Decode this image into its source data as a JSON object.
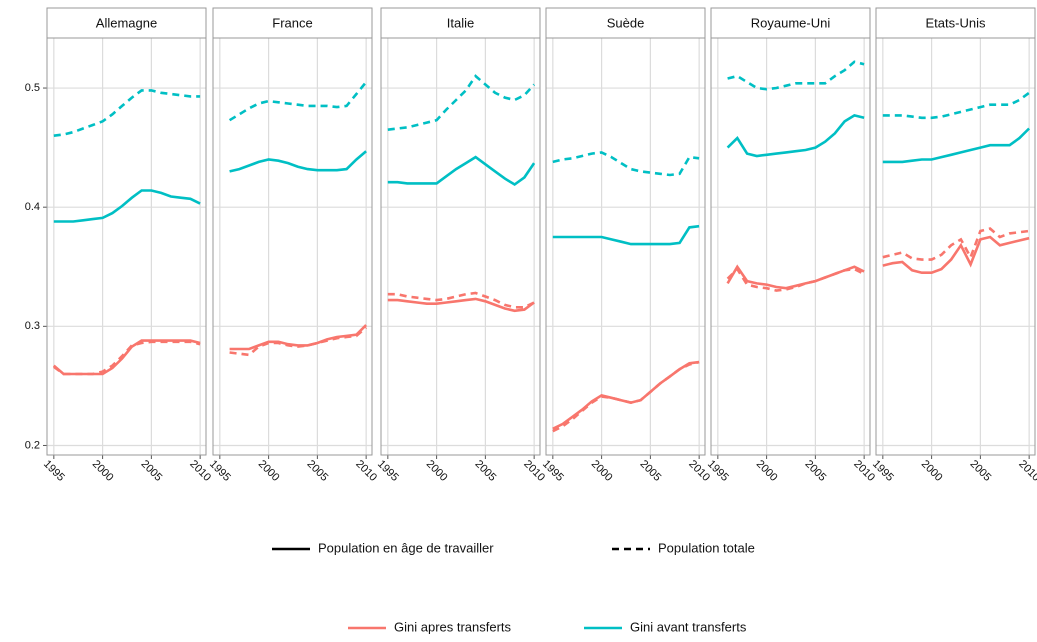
{
  "chart_data": [
    {
      "type": "line",
      "title": "Allemagne",
      "x": [
        1995,
        1996,
        1997,
        1998,
        1999,
        2000,
        2001,
        2002,
        2003,
        2004,
        2005,
        2006,
        2007,
        2008,
        2009,
        2010
      ],
      "xlim": [
        1994.3,
        2010.6
      ],
      "xticks": [
        1995,
        2000,
        2005,
        2010
      ],
      "ylim": [
        0.192,
        0.542
      ],
      "yticks": [
        0.2,
        0.3,
        0.4,
        0.5
      ],
      "grid": true,
      "series": [
        {
          "name": "Gini avant transferts",
          "population": "Population totale",
          "color": "#00bfc4",
          "dashed": true,
          "values": [
            0.46,
            0.461,
            0.463,
            0.466,
            0.469,
            0.472,
            0.478,
            0.485,
            0.492,
            0.498,
            0.498,
            0.496,
            0.495,
            0.494,
            0.493,
            0.493
          ]
        },
        {
          "name": "Gini avant transferts",
          "population": "Population en âge de travailler",
          "color": "#00bfc4",
          "dashed": false,
          "values": [
            0.388,
            0.388,
            0.388,
            0.389,
            0.39,
            0.391,
            0.395,
            0.401,
            0.408,
            0.414,
            0.414,
            0.412,
            0.409,
            0.408,
            0.407,
            0.403
          ]
        },
        {
          "name": "Gini apres transferts",
          "population": "Population totale",
          "color": "#f8766d",
          "dashed": true,
          "values": [
            0.266,
            0.26,
            0.26,
            0.26,
            0.26,
            0.262,
            0.267,
            0.275,
            0.284,
            0.286,
            0.287,
            0.287,
            0.287,
            0.287,
            0.287,
            0.285
          ]
        },
        {
          "name": "Gini apres transferts",
          "population": "Population en âge de travailler",
          "color": "#f8766d",
          "dashed": false,
          "values": [
            0.267,
            0.26,
            0.26,
            0.26,
            0.26,
            0.26,
            0.265,
            0.273,
            0.283,
            0.288,
            0.288,
            0.288,
            0.288,
            0.288,
            0.288,
            0.286
          ]
        }
      ]
    },
    {
      "type": "line",
      "title": "France",
      "x": [
        1996,
        1997,
        1998,
        1999,
        2000,
        2001,
        2002,
        2003,
        2004,
        2005,
        2006,
        2007,
        2008,
        2009,
        2010
      ],
      "xlim": [
        1994.3,
        2010.6
      ],
      "xticks": [
        1995,
        2000,
        2005,
        2010
      ],
      "ylim": [
        0.192,
        0.542
      ],
      "yticks": [
        0.2,
        0.3,
        0.4,
        0.5
      ],
      "grid": true,
      "series": [
        {
          "name": "Gini avant transferts",
          "population": "Population totale",
          "color": "#00bfc4",
          "dashed": true,
          "values": [
            0.473,
            0.478,
            0.483,
            0.487,
            0.489,
            0.488,
            0.487,
            0.486,
            0.485,
            0.485,
            0.485,
            0.484,
            0.485,
            0.495,
            0.505
          ]
        },
        {
          "name": "Gini avant transferts",
          "population": "Population en âge de travailler",
          "color": "#00bfc4",
          "dashed": false,
          "values": [
            0.43,
            0.432,
            0.435,
            0.438,
            0.44,
            0.439,
            0.437,
            0.434,
            0.432,
            0.431,
            0.431,
            0.431,
            0.432,
            0.44,
            0.447
          ]
        },
        {
          "name": "Gini apres transferts",
          "population": "Population totale",
          "color": "#f8766d",
          "dashed": true,
          "values": [
            0.278,
            0.277,
            0.276,
            0.283,
            0.286,
            0.286,
            0.284,
            0.283,
            0.284,
            0.286,
            0.288,
            0.29,
            0.291,
            0.292,
            0.299
          ]
        },
        {
          "name": "Gini apres transferts",
          "population": "Population en âge de travailler",
          "color": "#f8766d",
          "dashed": false,
          "values": [
            0.281,
            0.281,
            0.281,
            0.284,
            0.287,
            0.287,
            0.285,
            0.284,
            0.284,
            0.286,
            0.289,
            0.291,
            0.292,
            0.293,
            0.301
          ]
        }
      ]
    },
    {
      "type": "line",
      "title": "Italie",
      "x": [
        1995,
        1996,
        1997,
        1998,
        1999,
        2000,
        2001,
        2002,
        2003,
        2004,
        2005,
        2006,
        2007,
        2008,
        2009,
        2010
      ],
      "xlim": [
        1994.3,
        2010.6
      ],
      "xticks": [
        1995,
        2000,
        2005,
        2010
      ],
      "ylim": [
        0.192,
        0.542
      ],
      "yticks": [
        0.2,
        0.3,
        0.4,
        0.5
      ],
      "grid": true,
      "series": [
        {
          "name": "Gini avant transferts",
          "population": "Population totale",
          "color": "#00bfc4",
          "dashed": true,
          "values": [
            0.465,
            0.466,
            0.467,
            0.469,
            0.471,
            0.473,
            0.482,
            0.49,
            0.498,
            0.51,
            0.503,
            0.496,
            0.492,
            0.49,
            0.494,
            0.503
          ]
        },
        {
          "name": "Gini avant transferts",
          "population": "Population en âge de travailler",
          "color": "#00bfc4",
          "dashed": false,
          "values": [
            0.421,
            0.421,
            0.42,
            0.42,
            0.42,
            0.42,
            0.426,
            0.432,
            0.437,
            0.442,
            0.436,
            0.43,
            0.424,
            0.419,
            0.425,
            0.437
          ]
        },
        {
          "name": "Gini apres transferts",
          "population": "Population totale",
          "color": "#f8766d",
          "dashed": true,
          "values": [
            0.327,
            0.327,
            0.325,
            0.324,
            0.323,
            0.322,
            0.323,
            0.325,
            0.327,
            0.328,
            0.325,
            0.322,
            0.318,
            0.316,
            0.316,
            0.32
          ]
        },
        {
          "name": "Gini apres transferts",
          "population": "Population en âge de travailler",
          "color": "#f8766d",
          "dashed": false,
          "values": [
            0.322,
            0.322,
            0.321,
            0.32,
            0.319,
            0.319,
            0.32,
            0.321,
            0.322,
            0.323,
            0.321,
            0.318,
            0.315,
            0.313,
            0.314,
            0.32
          ]
        }
      ]
    },
    {
      "type": "line",
      "title": "Suède",
      "x": [
        1995,
        1996,
        1997,
        1998,
        1999,
        2000,
        2001,
        2002,
        2003,
        2004,
        2005,
        2006,
        2007,
        2008,
        2009,
        2010
      ],
      "xlim": [
        1994.3,
        2010.6
      ],
      "xticks": [
        1995,
        2000,
        2005,
        2010
      ],
      "ylim": [
        0.192,
        0.542
      ],
      "yticks": [
        0.2,
        0.3,
        0.4,
        0.5
      ],
      "grid": true,
      "series": [
        {
          "name": "Gini avant transferts",
          "population": "Population totale",
          "color": "#00bfc4",
          "dashed": true,
          "values": [
            0.438,
            0.44,
            0.441,
            0.443,
            0.445,
            0.446,
            0.442,
            0.437,
            0.432,
            0.43,
            0.429,
            0.428,
            0.427,
            0.428,
            0.442,
            0.441
          ]
        },
        {
          "name": "Gini avant transferts",
          "population": "Population en âge de travailler",
          "color": "#00bfc4",
          "dashed": false,
          "values": [
            0.375,
            0.375,
            0.375,
            0.375,
            0.375,
            0.375,
            0.373,
            0.371,
            0.369,
            0.369,
            0.369,
            0.369,
            0.369,
            0.37,
            0.383,
            0.384
          ]
        },
        {
          "name": "Gini apres transferts",
          "population": "Population totale",
          "color": "#f8766d",
          "dashed": true,
          "values": [
            0.212,
            0.216,
            0.222,
            0.229,
            0.236,
            0.241,
            0.24,
            0.238,
            0.236,
            0.238,
            0.245,
            0.252,
            0.258,
            0.264,
            0.268,
            0.27
          ]
        },
        {
          "name": "Gini apres transferts",
          "population": "Population en âge de travailler",
          "color": "#f8766d",
          "dashed": false,
          "values": [
            0.214,
            0.218,
            0.224,
            0.23,
            0.237,
            0.242,
            0.24,
            0.238,
            0.236,
            0.238,
            0.245,
            0.252,
            0.258,
            0.264,
            0.269,
            0.27
          ]
        }
      ]
    },
    {
      "type": "line",
      "title": "Royaume-Uni",
      "x": [
        1996,
        1997,
        1998,
        1999,
        2000,
        2001,
        2002,
        2003,
        2004,
        2005,
        2006,
        2007,
        2008,
        2009,
        2010
      ],
      "xlim": [
        1994.3,
        2010.6
      ],
      "xticks": [
        1995,
        2000,
        2005,
        2010
      ],
      "ylim": [
        0.192,
        0.542
      ],
      "yticks": [
        0.2,
        0.3,
        0.4,
        0.5
      ],
      "grid": true,
      "series": [
        {
          "name": "Gini avant transferts",
          "population": "Population totale",
          "color": "#00bfc4",
          "dashed": true,
          "values": [
            0.508,
            0.51,
            0.505,
            0.5,
            0.499,
            0.5,
            0.502,
            0.504,
            0.504,
            0.504,
            0.504,
            0.51,
            0.515,
            0.522,
            0.52
          ]
        },
        {
          "name": "Gini avant transferts",
          "population": "Population en âge de travailler",
          "color": "#00bfc4",
          "dashed": false,
          "values": [
            0.45,
            0.458,
            0.445,
            0.443,
            0.444,
            0.445,
            0.446,
            0.447,
            0.448,
            0.45,
            0.455,
            0.462,
            0.472,
            0.477,
            0.475
          ]
        },
        {
          "name": "Gini apres transferts",
          "population": "Population totale",
          "color": "#f8766d",
          "dashed": true,
          "values": [
            0.34,
            0.348,
            0.335,
            0.333,
            0.332,
            0.33,
            0.331,
            0.333,
            0.336,
            0.338,
            0.341,
            0.344,
            0.347,
            0.348,
            0.344
          ]
        },
        {
          "name": "Gini apres transferts",
          "population": "Population en âge de travailler",
          "color": "#f8766d",
          "dashed": false,
          "values": [
            0.336,
            0.35,
            0.338,
            0.336,
            0.335,
            0.333,
            0.332,
            0.334,
            0.336,
            0.338,
            0.341,
            0.344,
            0.347,
            0.35,
            0.346
          ]
        }
      ]
    },
    {
      "type": "line",
      "title": "Etats-Unis",
      "x": [
        1995,
        1996,
        1997,
        1998,
        1999,
        2000,
        2001,
        2002,
        2003,
        2004,
        2005,
        2006,
        2007,
        2008,
        2009,
        2010
      ],
      "xlim": [
        1994.3,
        2010.6
      ],
      "xticks": [
        1995,
        2000,
        2005,
        2010
      ],
      "ylim": [
        0.192,
        0.542
      ],
      "yticks": [
        0.2,
        0.3,
        0.4,
        0.5
      ],
      "grid": true,
      "series": [
        {
          "name": "Gini avant transferts",
          "population": "Population totale",
          "color": "#00bfc4",
          "dashed": true,
          "values": [
            0.477,
            0.477,
            0.477,
            0.476,
            0.475,
            0.475,
            0.476,
            0.478,
            0.48,
            0.482,
            0.484,
            0.486,
            0.486,
            0.486,
            0.49,
            0.496
          ]
        },
        {
          "name": "Gini avant transferts",
          "population": "Population en âge de travailler",
          "color": "#00bfc4",
          "dashed": false,
          "values": [
            0.438,
            0.438,
            0.438,
            0.439,
            0.44,
            0.44,
            0.442,
            0.444,
            0.446,
            0.448,
            0.45,
            0.452,
            0.452,
            0.452,
            0.458,
            0.466
          ]
        },
        {
          "name": "Gini apres transferts",
          "population": "Population totale",
          "color": "#f8766d",
          "dashed": true,
          "values": [
            0.358,
            0.36,
            0.362,
            0.357,
            0.356,
            0.356,
            0.36,
            0.368,
            0.373,
            0.358,
            0.38,
            0.382,
            0.375,
            0.378,
            0.379,
            0.38
          ]
        },
        {
          "name": "Gini apres transferts",
          "population": "Population en âge de travailler",
          "color": "#f8766d",
          "dashed": false,
          "values": [
            0.351,
            0.353,
            0.354,
            0.347,
            0.345,
            0.345,
            0.348,
            0.356,
            0.368,
            0.352,
            0.373,
            0.375,
            0.368,
            0.37,
            0.372,
            0.374
          ]
        }
      ]
    }
  ],
  "legend": {
    "linetype": [
      {
        "name": "Population en âge de travailler",
        "dashed": false
      },
      {
        "name": "Population totale",
        "dashed": true
      }
    ],
    "color": [
      {
        "name": "Gini apres transferts",
        "color": "#f8766d"
      },
      {
        "name": "Gini avant transferts",
        "color": "#00bfc4"
      }
    ]
  }
}
